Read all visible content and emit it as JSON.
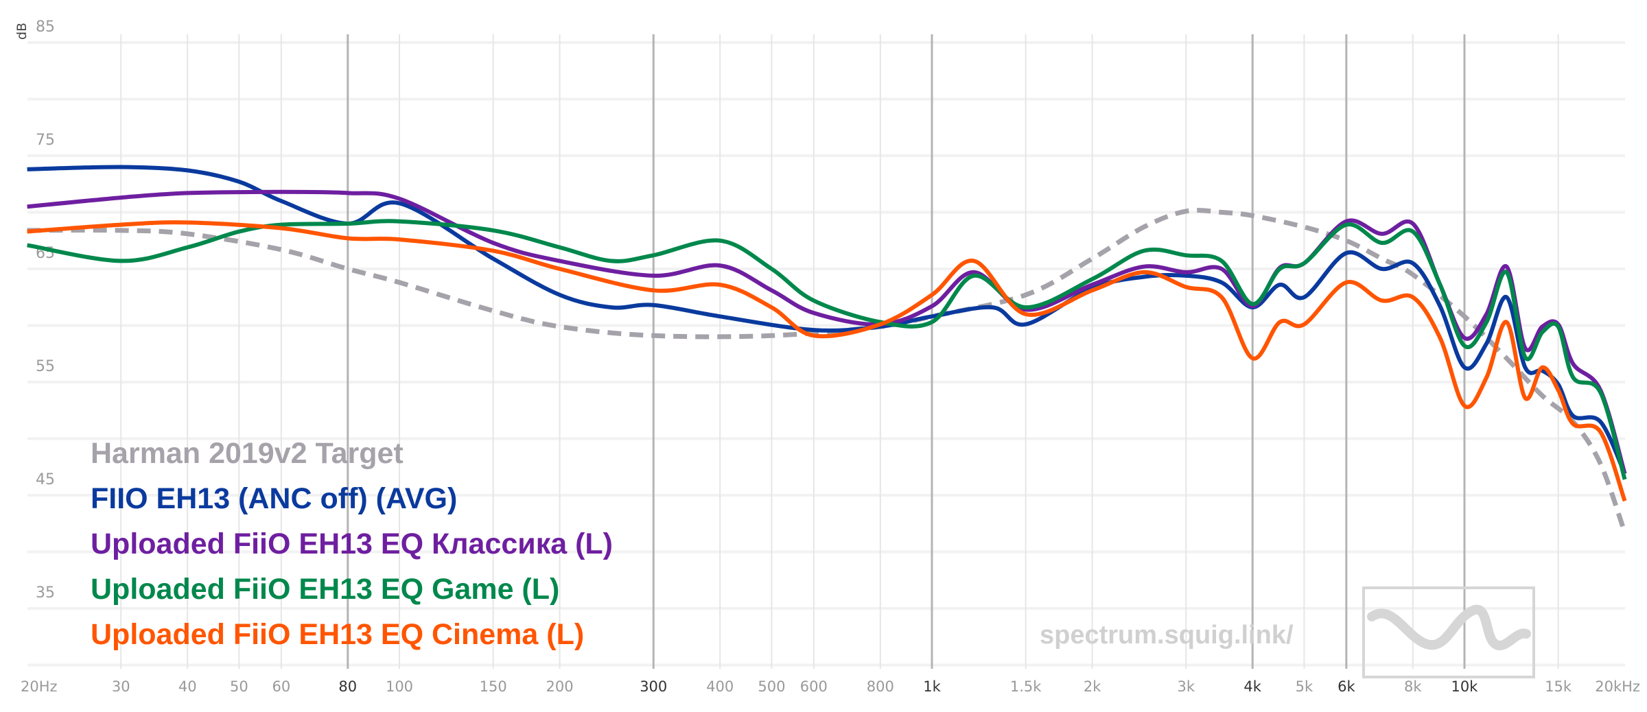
{
  "chart_data": {
    "type": "line",
    "title": "",
    "xlabel": "",
    "ylabel": "dB",
    "xscale": "log",
    "xlim": [
      20,
      20000
    ],
    "ylim": [
      30,
      85
    ],
    "grid": true,
    "legend_position": "bottom-left",
    "y_ticks": [
      85,
      75,
      65,
      55,
      45,
      35
    ],
    "x_ticks": [
      {
        "f": 20,
        "label": "20Hz",
        "major": false
      },
      {
        "f": 30,
        "label": "30",
        "major": false
      },
      {
        "f": 40,
        "label": "40",
        "major": false
      },
      {
        "f": 50,
        "label": "50",
        "major": false
      },
      {
        "f": 60,
        "label": "60",
        "major": false
      },
      {
        "f": 80,
        "label": "80",
        "major": true
      },
      {
        "f": 100,
        "label": "100",
        "major": false
      },
      {
        "f": 150,
        "label": "150",
        "major": false
      },
      {
        "f": 200,
        "label": "200",
        "major": false
      },
      {
        "f": 300,
        "label": "300",
        "major": true
      },
      {
        "f": 400,
        "label": "400",
        "major": false
      },
      {
        "f": 500,
        "label": "500",
        "major": false
      },
      {
        "f": 600,
        "label": "600",
        "major": false
      },
      {
        "f": 800,
        "label": "800",
        "major": false
      },
      {
        "f": 1000,
        "label": "1k",
        "major": true
      },
      {
        "f": 1500,
        "label": "1.5k",
        "major": false
      },
      {
        "f": 2000,
        "label": "2k",
        "major": false
      },
      {
        "f": 3000,
        "label": "3k",
        "major": false
      },
      {
        "f": 4000,
        "label": "4k",
        "major": true
      },
      {
        "f": 5000,
        "label": "5k",
        "major": false
      },
      {
        "f": 6000,
        "label": "6k",
        "major": true
      },
      {
        "f": 8000,
        "label": "8k",
        "major": false
      },
      {
        "f": 10000,
        "label": "10k",
        "major": true
      },
      {
        "f": 15000,
        "label": "15k",
        "major": false
      },
      {
        "f": 20000,
        "label": "20kHz",
        "major": false
      }
    ],
    "series": [
      {
        "name": "Harman 2019v2 Target",
        "color": "#a5a2aa",
        "dashed": true,
        "x": [
          20,
          30,
          40,
          60,
          80,
          100,
          150,
          200,
          300,
          500,
          800,
          1000,
          1500,
          2000,
          2500,
          3000,
          3500,
          4000,
          5000,
          6000,
          7000,
          8000,
          10000,
          12000,
          14000,
          16000,
          18000,
          20000
        ],
        "y": [
          68.4,
          68.4,
          68.1,
          66.7,
          65,
          63.8,
          61.3,
          59.9,
          59.1,
          59.1,
          59.9,
          60.8,
          62.7,
          65.9,
          68.7,
          70.1,
          70,
          69.7,
          68.7,
          67.5,
          65.9,
          64.5,
          60.8,
          57.1,
          53.8,
          51.5,
          47.8,
          41.7
        ]
      },
      {
        "name": "FIIO EH13 (ANC off) (AVG)",
        "color": "#0a3a9e",
        "dashed": false,
        "x": [
          20,
          30,
          40,
          50,
          60,
          80,
          100,
          150,
          200,
          250,
          300,
          400,
          600,
          800,
          1000,
          1300,
          1500,
          2000,
          2500,
          3000,
          3500,
          4000,
          4500,
          5000,
          6000,
          7000,
          8000,
          9000,
          10000,
          11000,
          12000,
          13000,
          14000,
          15000,
          16000,
          18000,
          20000
        ],
        "y": [
          73.8,
          74,
          73.7,
          72.7,
          71,
          69,
          70.8,
          65.9,
          62.7,
          61.6,
          61.8,
          60.8,
          59.6,
          59.9,
          60.8,
          61.6,
          60.1,
          63.3,
          64.3,
          64.4,
          63.8,
          61.6,
          63.6,
          62.5,
          66.4,
          65,
          65.5,
          61.7,
          56.3,
          58.4,
          62.5,
          56.3,
          56,
          54.8,
          52,
          51.5,
          46.9
        ]
      },
      {
        "name": "Uploaded FiiO EH13 EQ Классика (L)",
        "color": "#6e1fa0",
        "dashed": false,
        "x": [
          20,
          30,
          40,
          60,
          80,
          100,
          150,
          200,
          300,
          400,
          500,
          600,
          800,
          1000,
          1200,
          1500,
          2000,
          2500,
          3000,
          3500,
          4000,
          4500,
          5000,
          6000,
          7000,
          8000,
          9000,
          10000,
          11000,
          12000,
          13000,
          14000,
          15000,
          16000,
          18000,
          20000
        ],
        "y": [
          70.5,
          71.3,
          71.7,
          71.8,
          71.7,
          71.2,
          67.3,
          65.7,
          64.4,
          65.3,
          63.1,
          61.1,
          60.1,
          61.7,
          64.7,
          61.4,
          63.6,
          65.2,
          64.7,
          65,
          61.7,
          65.1,
          65.5,
          69.2,
          68.1,
          69,
          63.6,
          58.9,
          61,
          65.2,
          58,
          59.9,
          60.1,
          56.6,
          54.3,
          46.9
        ]
      },
      {
        "name": "Uploaded FiiO EH13 EQ Game (L)",
        "color": "#00884c",
        "dashed": false,
        "x": [
          20,
          30,
          40,
          50,
          60,
          80,
          100,
          150,
          200,
          250,
          300,
          400,
          500,
          600,
          800,
          1000,
          1200,
          1500,
          2000,
          2500,
          3000,
          3500,
          4000,
          4500,
          5000,
          6000,
          7000,
          8000,
          9000,
          10000,
          11000,
          12000,
          13000,
          14000,
          15000,
          16000,
          18000,
          20000
        ],
        "y": [
          67.1,
          65.7,
          66.9,
          68.3,
          68.9,
          69,
          69.2,
          68.4,
          66.9,
          65.7,
          66.2,
          67.5,
          65,
          62.2,
          60.3,
          60.3,
          64.4,
          61.6,
          64.1,
          66.6,
          66.2,
          65.7,
          61.9,
          65,
          65.5,
          68.9,
          67.3,
          68.3,
          63.6,
          58.2,
          60.3,
          64.7,
          57.2,
          59.4,
          59.9,
          55.4,
          54.1,
          46.4
        ]
      },
      {
        "name": "Uploaded FiiO EH13 EQ Cinema (L)",
        "color": "#ff5500",
        "dashed": false,
        "x": [
          20,
          30,
          40,
          60,
          80,
          100,
          150,
          200,
          300,
          400,
          500,
          600,
          800,
          1000,
          1200,
          1500,
          2000,
          2500,
          3000,
          3500,
          4000,
          4500,
          5000,
          6000,
          7000,
          8000,
          9000,
          10000,
          11000,
          12000,
          13000,
          14000,
          15000,
          16000,
          18000,
          20000
        ],
        "y": [
          68.3,
          68.9,
          69.1,
          68.6,
          67.7,
          67.6,
          66.6,
          65,
          63.1,
          63.6,
          61.6,
          59.1,
          60.1,
          62.7,
          65.7,
          61,
          63.1,
          64.7,
          63.4,
          62.5,
          57.1,
          60.3,
          60.1,
          63.8,
          62.2,
          62.5,
          58.9,
          52.9,
          55.4,
          60.3,
          53.6,
          56.3,
          54.3,
          51.3,
          50.6,
          44.5
        ]
      }
    ]
  },
  "watermark": "spectrum.squig.link/"
}
